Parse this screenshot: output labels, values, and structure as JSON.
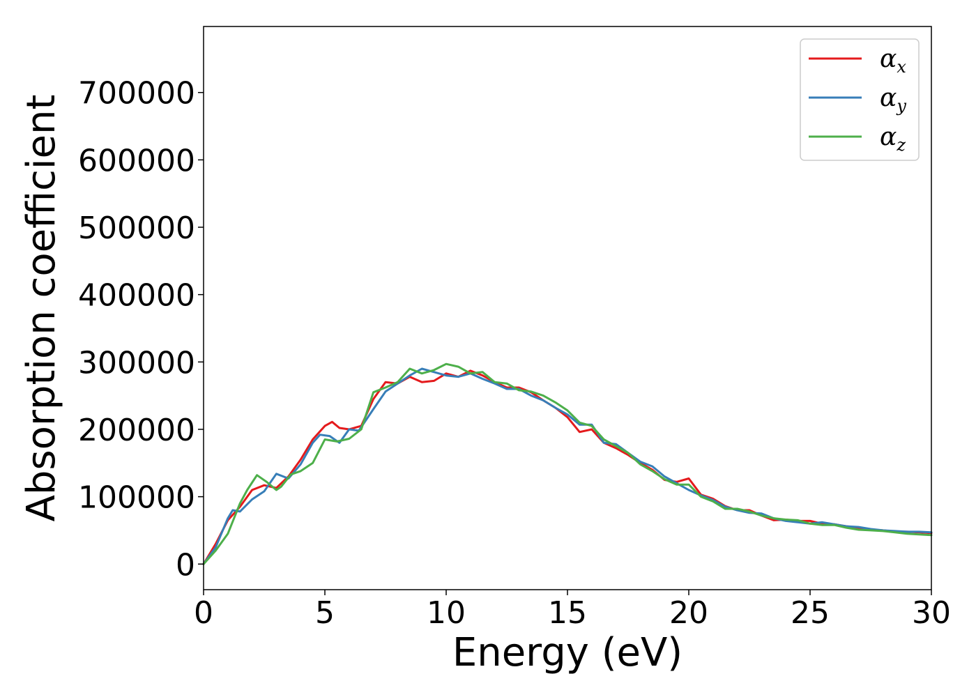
{
  "chart_data": {
    "type": "line",
    "title": "",
    "xlabel": "Energy (eV)",
    "ylabel": "Absorption coefficient",
    "xlim": [
      0,
      30
    ],
    "ylim": [
      -38000,
      798000
    ],
    "xticks": [
      0,
      5,
      10,
      15,
      20,
      25,
      30
    ],
    "yticks": [
      0,
      100000,
      200000,
      300000,
      400000,
      500000,
      600000,
      700000
    ],
    "grid": false,
    "legend": "top-right",
    "series": [
      {
        "name_base": "α",
        "name_sub": "x",
        "color": "#e41a1c",
        "x": [
          0,
          0.5,
          1.0,
          1.5,
          2.0,
          2.5,
          3.0,
          3.5,
          4.0,
          4.5,
          5.0,
          5.3,
          5.6,
          6.0,
          6.5,
          7.0,
          7.5,
          8.0,
          8.5,
          9.0,
          9.5,
          10.0,
          10.5,
          11.0,
          11.5,
          12.0,
          12.5,
          13.0,
          13.5,
          14.0,
          14.5,
          15.0,
          15.5,
          16.0,
          16.5,
          17.0,
          17.5,
          18.0,
          18.5,
          19.0,
          19.5,
          20.0,
          20.5,
          21.0,
          21.5,
          22.0,
          22.5,
          23.0,
          23.5,
          24.0,
          24.5,
          25.0,
          25.5,
          26.0,
          26.5,
          27.0,
          27.5,
          28.0,
          28.5,
          29.0,
          29.5,
          30.0
        ],
        "y": [
          0,
          30000,
          65000,
          85000,
          110000,
          117000,
          113000,
          130000,
          155000,
          185000,
          205000,
          211000,
          202000,
          200000,
          205000,
          245000,
          270000,
          268000,
          278000,
          270000,
          272000,
          283000,
          278000,
          287000,
          280000,
          270000,
          262000,
          262000,
          255000,
          243000,
          232000,
          218000,
          196000,
          200000,
          180000,
          172000,
          162000,
          150000,
          140000,
          125000,
          122000,
          127000,
          103000,
          97000,
          86000,
          80000,
          80000,
          72000,
          65000,
          66000,
          64000,
          64000,
          60000,
          59000,
          56000,
          54000,
          51000,
          50000,
          48000,
          48000,
          47000,
          46000
        ]
      },
      {
        "name_base": "α",
        "name_sub": "y",
        "color": "#377eb8",
        "x": [
          0,
          0.5,
          1.0,
          1.2,
          1.5,
          2.0,
          2.5,
          3.0,
          3.5,
          4.0,
          4.5,
          4.8,
          5.2,
          5.6,
          6.0,
          6.4,
          7.0,
          7.5,
          8.0,
          8.5,
          9.0,
          9.5,
          10.0,
          10.5,
          11.0,
          11.5,
          12.0,
          12.5,
          13.0,
          13.5,
          14.0,
          14.5,
          15.0,
          15.5,
          16.0,
          16.5,
          17.0,
          17.5,
          18.0,
          18.5,
          19.0,
          19.5,
          20.0,
          20.5,
          21.0,
          21.5,
          22.0,
          22.5,
          23.0,
          23.5,
          24.0,
          24.5,
          25.0,
          25.5,
          26.0,
          26.5,
          27.0,
          27.5,
          28.0,
          28.5,
          29.0,
          29.5,
          30.0
        ],
        "y": [
          0,
          25000,
          68000,
          80000,
          78000,
          96000,
          108000,
          134000,
          127000,
          148000,
          180000,
          192000,
          190000,
          180000,
          200000,
          198000,
          230000,
          256000,
          268000,
          280000,
          290000,
          285000,
          280000,
          278000,
          283000,
          275000,
          268000,
          260000,
          260000,
          250000,
          243000,
          232000,
          222000,
          207000,
          207000,
          180000,
          178000,
          165000,
          152000,
          145000,
          130000,
          120000,
          110000,
          102000,
          95000,
          85000,
          80000,
          76000,
          75000,
          68000,
          64000,
          62000,
          60000,
          62000,
          59000,
          56000,
          55000,
          52000,
          50000,
          49000,
          48000,
          48000,
          47000
        ]
      },
      {
        "name_base": "α",
        "name_sub": "z",
        "color": "#4daf4a",
        "x": [
          0,
          0.5,
          1.0,
          1.5,
          1.8,
          2.2,
          2.6,
          3.0,
          3.2,
          3.6,
          4.0,
          4.5,
          5.0,
          5.5,
          6.0,
          6.5,
          7.0,
          7.5,
          8.0,
          8.5,
          9.0,
          9.5,
          10.0,
          10.5,
          11.0,
          11.5,
          12.0,
          12.5,
          13.0,
          13.5,
          14.0,
          14.5,
          15.0,
          15.5,
          16.0,
          16.5,
          17.0,
          17.5,
          18.0,
          18.5,
          19.0,
          19.5,
          20.0,
          20.5,
          21.0,
          21.5,
          22.0,
          22.5,
          23.0,
          23.5,
          24.0,
          24.5,
          25.0,
          25.5,
          26.0,
          26.5,
          27.0,
          27.5,
          28.0,
          28.5,
          29.0,
          29.5,
          30.0
        ],
        "y": [
          0,
          20000,
          45000,
          90000,
          110000,
          132000,
          122000,
          110000,
          115000,
          133000,
          138000,
          150000,
          185000,
          182000,
          186000,
          200000,
          255000,
          262000,
          270000,
          290000,
          283000,
          288000,
          297000,
          293000,
          283000,
          285000,
          270000,
          268000,
          258000,
          256000,
          250000,
          240000,
          228000,
          210000,
          205000,
          185000,
          175000,
          165000,
          148000,
          138000,
          126000,
          118000,
          118000,
          100000,
          93000,
          82000,
          82000,
          78000,
          72000,
          68000,
          66000,
          65000,
          60000,
          58000,
          58000,
          54000,
          51000,
          50000,
          49000,
          47000,
          45000,
          44000,
          43000
        ]
      }
    ]
  }
}
